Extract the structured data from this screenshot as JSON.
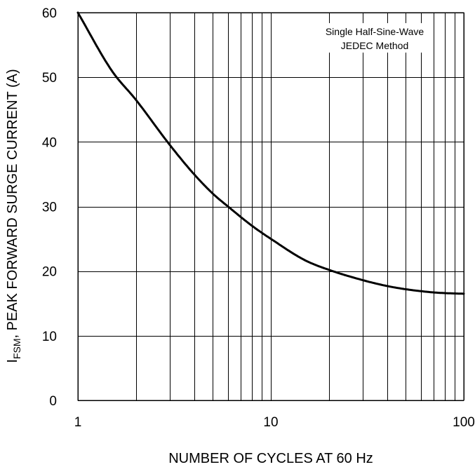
{
  "chart_data": {
    "type": "line",
    "x_scale": "log",
    "y_scale": "linear",
    "xlim": [
      1,
      100
    ],
    "ylim": [
      0,
      60
    ],
    "grid": true,
    "x_ticks": [
      1,
      10,
      100
    ],
    "x_tick_labels": [
      "1",
      "10",
      "100"
    ],
    "y_ticks": [
      0,
      10,
      20,
      30,
      40,
      50,
      60
    ],
    "y_tick_labels": [
      "0",
      "10",
      "20",
      "30",
      "40",
      "50",
      "60"
    ],
    "xlabel": "NUMBER OF CYCLES AT 60 Hz",
    "ylabel": {
      "symbol": "I",
      "subscript": "FSM",
      "text": ", PEAK FORWARD SURGE CURRENT (A)"
    },
    "annotation_lines": [
      "Single Half-Sine-Wave",
      "JEDEC Method"
    ],
    "series": [
      {
        "x": [
          1,
          1.5,
          2,
          3,
          4,
          5,
          6,
          8,
          10,
          15,
          20,
          30,
          40,
          50,
          60,
          70,
          80,
          100
        ],
        "y": [
          60,
          51,
          46.5,
          39.5,
          35,
          32,
          30,
          27,
          25,
          21.7,
          20.2,
          18.6,
          17.7,
          17.2,
          16.9,
          16.7,
          16.6,
          16.5
        ]
      }
    ]
  }
}
